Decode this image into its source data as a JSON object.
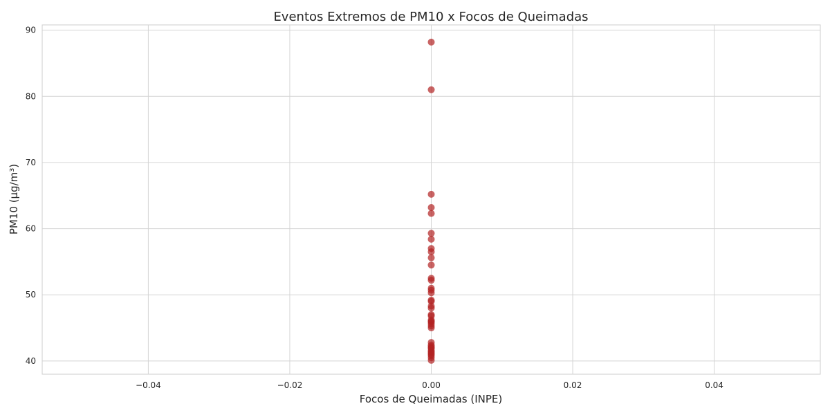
{
  "chart_data": {
    "type": "scatter",
    "title": "Eventos Extremos de PM10 x Focos de Queimadas",
    "xlabel": "Focos de Queimadas (INPE)",
    "ylabel": "PM10 (µg/m³)",
    "xlim": [
      -0.055,
      0.055
    ],
    "ylim": [
      38.0,
      90.8
    ],
    "xticks": [
      -0.04,
      -0.02,
      0.0,
      0.02,
      0.04
    ],
    "xtick_labels": [
      "−0.04",
      "−0.02",
      "0.00",
      "0.02",
      "0.04"
    ],
    "yticks": [
      40,
      50,
      60,
      70,
      80,
      90
    ],
    "ytick_labels": [
      "40",
      "50",
      "60",
      "70",
      "80",
      "90"
    ],
    "grid": true,
    "series": [
      {
        "color": "#b22222",
        "x": [
          0,
          0,
          0,
          0,
          0,
          0,
          0,
          0,
          0,
          0,
          0,
          0,
          0,
          0,
          0,
          0,
          0,
          0,
          0,
          0,
          0,
          0,
          0,
          0,
          0,
          0,
          0,
          0,
          0,
          0,
          0,
          0,
          0,
          0,
          0,
          0,
          0,
          0,
          0,
          0
        ],
        "y": [
          88.2,
          81.0,
          65.2,
          63.2,
          62.3,
          59.3,
          58.4,
          57.0,
          56.5,
          55.6,
          54.5,
          52.5,
          52.2,
          51.0,
          50.7,
          50.3,
          49.2,
          49.0,
          48.3,
          48.0,
          47.0,
          46.8,
          46.2,
          46.0,
          45.9,
          45.6,
          45.3,
          45.0,
          42.8,
          42.4,
          42.2,
          42.0,
          41.9,
          41.6,
          41.4,
          41.2,
          41.0,
          40.8,
          40.5,
          40.1
        ]
      }
    ]
  }
}
